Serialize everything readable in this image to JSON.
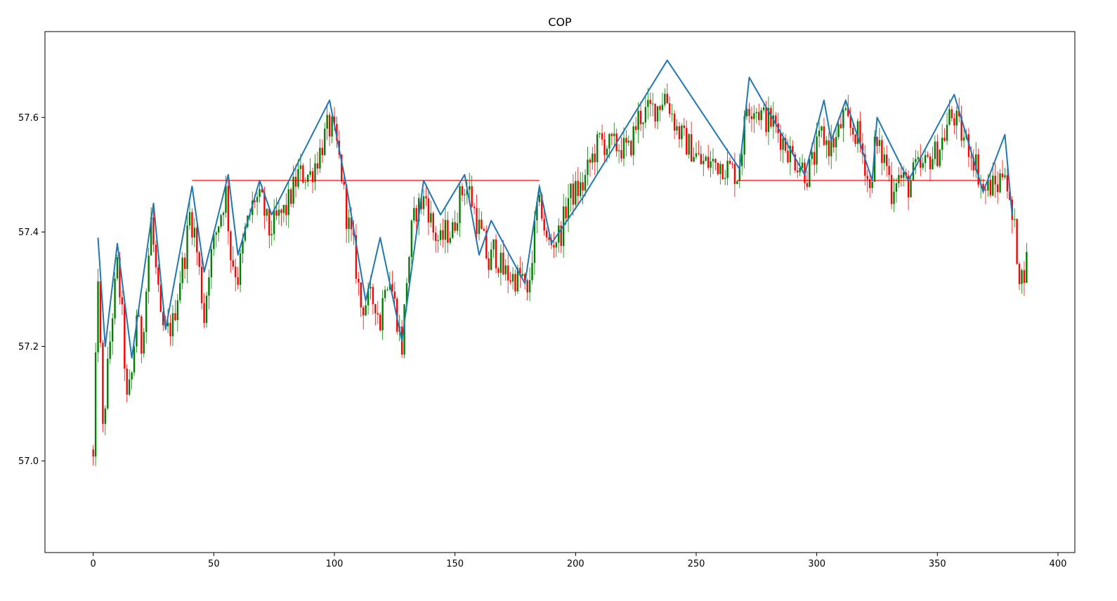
{
  "chart_data": {
    "type": "candlestick",
    "title": "COP",
    "xlabel": "",
    "ylabel": "",
    "xlim": [
      -20,
      407
    ],
    "ylim": [
      56.84,
      57.75
    ],
    "x_ticks": [
      0,
      50,
      100,
      150,
      200,
      250,
      300,
      350,
      400
    ],
    "y_ticks": [
      57.0,
      57.2,
      57.4,
      57.6
    ],
    "x_tick_labels": [
      "0",
      "50",
      "100",
      "150",
      "200",
      "250",
      "300",
      "350",
      "400"
    ],
    "y_tick_labels": [
      "57.0",
      "57.2",
      "57.4",
      "57.6"
    ],
    "grid": false,
    "up_color": "#008000",
    "down_color": "#ff0000",
    "candles_path": [
      [
        0,
        57.0
      ],
      [
        2,
        57.33
      ],
      [
        4,
        57.05
      ],
      [
        6,
        57.16
      ],
      [
        8,
        57.26
      ],
      [
        10,
        57.34
      ],
      [
        12,
        57.25
      ],
      [
        14,
        57.1
      ],
      [
        16,
        57.15
      ],
      [
        18,
        57.26
      ],
      [
        20,
        57.2
      ],
      [
        22,
        57.3
      ],
      [
        24,
        57.42
      ],
      [
        26,
        57.33
      ],
      [
        28,
        57.24
      ],
      [
        30,
        57.22
      ],
      [
        33,
        57.24
      ],
      [
        36,
        57.32
      ],
      [
        38,
        57.36
      ],
      [
        40,
        57.43
      ],
      [
        42,
        57.4
      ],
      [
        44,
        57.33
      ],
      [
        46,
        57.25
      ],
      [
        48,
        57.34
      ],
      [
        51,
        57.4
      ],
      [
        55,
        57.47
      ],
      [
        57,
        57.36
      ],
      [
        60,
        57.32
      ],
      [
        63,
        57.4
      ],
      [
        67,
        57.46
      ],
      [
        70,
        57.45
      ],
      [
        73,
        57.4
      ],
      [
        76,
        57.42
      ],
      [
        80,
        57.44
      ],
      [
        85,
        57.5
      ],
      [
        90,
        57.5
      ],
      [
        94,
        57.54
      ],
      [
        97,
        57.58
      ],
      [
        99,
        57.58
      ],
      [
        101,
        57.55
      ],
      [
        103,
        57.5
      ],
      [
        105,
        57.43
      ],
      [
        108,
        57.37
      ],
      [
        111,
        57.27
      ],
      [
        114,
        57.28
      ],
      [
        117,
        57.28
      ],
      [
        119,
        57.24
      ],
      [
        121,
        57.32
      ],
      [
        123,
        57.32
      ],
      [
        126,
        57.25
      ],
      [
        128,
        57.2
      ],
      [
        130,
        57.32
      ],
      [
        132,
        57.4
      ],
      [
        134,
        57.44
      ],
      [
        136,
        57.45
      ],
      [
        138,
        57.46
      ],
      [
        141,
        57.4
      ],
      [
        144,
        57.38
      ],
      [
        146,
        57.4
      ],
      [
        149,
        57.4
      ],
      [
        152,
        57.46
      ],
      [
        154,
        57.48
      ],
      [
        156,
        57.47
      ],
      [
        159,
        57.42
      ],
      [
        162,
        57.38
      ],
      [
        164,
        57.34
      ],
      [
        166,
        57.37
      ],
      [
        170,
        57.33
      ],
      [
        174,
        57.32
      ],
      [
        178,
        57.32
      ],
      [
        180,
        57.28
      ],
      [
        182,
        57.36
      ],
      [
        184,
        57.44
      ],
      [
        186,
        57.44
      ],
      [
        188,
        57.38
      ],
      [
        190,
        57.38
      ],
      [
        194,
        57.4
      ],
      [
        197,
        57.46
      ],
      [
        200,
        57.47
      ],
      [
        203,
        57.48
      ],
      [
        206,
        57.52
      ],
      [
        210,
        57.56
      ],
      [
        214,
        57.55
      ],
      [
        218,
        57.55
      ],
      [
        222,
        57.54
      ],
      [
        226,
        57.6
      ],
      [
        230,
        57.61
      ],
      [
        234,
        57.62
      ],
      [
        237,
        57.64
      ],
      [
        239,
        57.62
      ],
      [
        242,
        57.58
      ],
      [
        245,
        57.56
      ],
      [
        249,
        57.54
      ],
      [
        252,
        57.52
      ],
      [
        256,
        57.52
      ],
      [
        260,
        57.52
      ],
      [
        264,
        57.51
      ],
      [
        267,
        57.5
      ],
      [
        269,
        57.55
      ],
      [
        271,
        57.62
      ],
      [
        274,
        57.62
      ],
      [
        278,
        57.6
      ],
      [
        282,
        57.59
      ],
      [
        286,
        57.56
      ],
      [
        290,
        57.53
      ],
      [
        293,
        57.52
      ],
      [
        296,
        57.5
      ],
      [
        299,
        57.53
      ],
      [
        302,
        57.57
      ],
      [
        305,
        57.55
      ],
      [
        308,
        57.56
      ],
      [
        311,
        57.6
      ],
      [
        314,
        57.58
      ],
      [
        317,
        57.57
      ],
      [
        320,
        57.52
      ],
      [
        322,
        57.47
      ],
      [
        324,
        57.55
      ],
      [
        326,
        57.54
      ],
      [
        329,
        57.52
      ],
      [
        331,
        57.47
      ],
      [
        333,
        57.5
      ],
      [
        336,
        57.49
      ],
      [
        338,
        57.48
      ],
      [
        341,
        57.51
      ],
      [
        344,
        57.51
      ],
      [
        347,
        57.53
      ],
      [
        350,
        57.54
      ],
      [
        353,
        57.57
      ],
      [
        355,
        57.6
      ],
      [
        357,
        57.6
      ],
      [
        360,
        57.57
      ],
      [
        363,
        57.55
      ],
      [
        366,
        57.52
      ],
      [
        369,
        57.47
      ],
      [
        372,
        57.48
      ],
      [
        375,
        57.48
      ],
      [
        378,
        57.52
      ],
      [
        380,
        57.44
      ],
      [
        382,
        57.4
      ],
      [
        384,
        57.33
      ],
      [
        385,
        57.32
      ],
      [
        387,
        57.35
      ]
    ],
    "zigzag": {
      "color": "#1f77b4",
      "x": [
        2,
        5,
        10,
        16,
        25,
        30,
        41,
        46,
        56,
        60,
        69,
        74,
        98,
        105,
        113,
        119,
        128,
        137,
        144,
        154,
        160,
        165,
        179,
        185,
        190,
        203,
        238,
        268,
        272,
        295,
        303,
        306,
        312,
        323,
        325,
        338,
        357,
        369,
        378,
        381
      ],
      "y": [
        57.39,
        57.2,
        57.38,
        57.18,
        57.45,
        57.23,
        57.48,
        57.33,
        57.5,
        57.36,
        57.49,
        57.43,
        57.63,
        57.48,
        57.28,
        57.39,
        57.21,
        57.49,
        57.43,
        57.5,
        57.36,
        57.42,
        57.31,
        57.48,
        57.38,
        57.46,
        57.7,
        57.51,
        57.67,
        57.5,
        57.63,
        57.56,
        57.63,
        57.49,
        57.6,
        57.49,
        57.64,
        57.47,
        57.57,
        57.43
      ]
    },
    "support_lines": [
      {
        "color": "#ff0000",
        "x_start": 41,
        "x_end": 185,
        "y": 57.49
      },
      {
        "color": "#ff0000",
        "x_start": 267,
        "x_end": 370,
        "y": 57.49
      }
    ]
  }
}
